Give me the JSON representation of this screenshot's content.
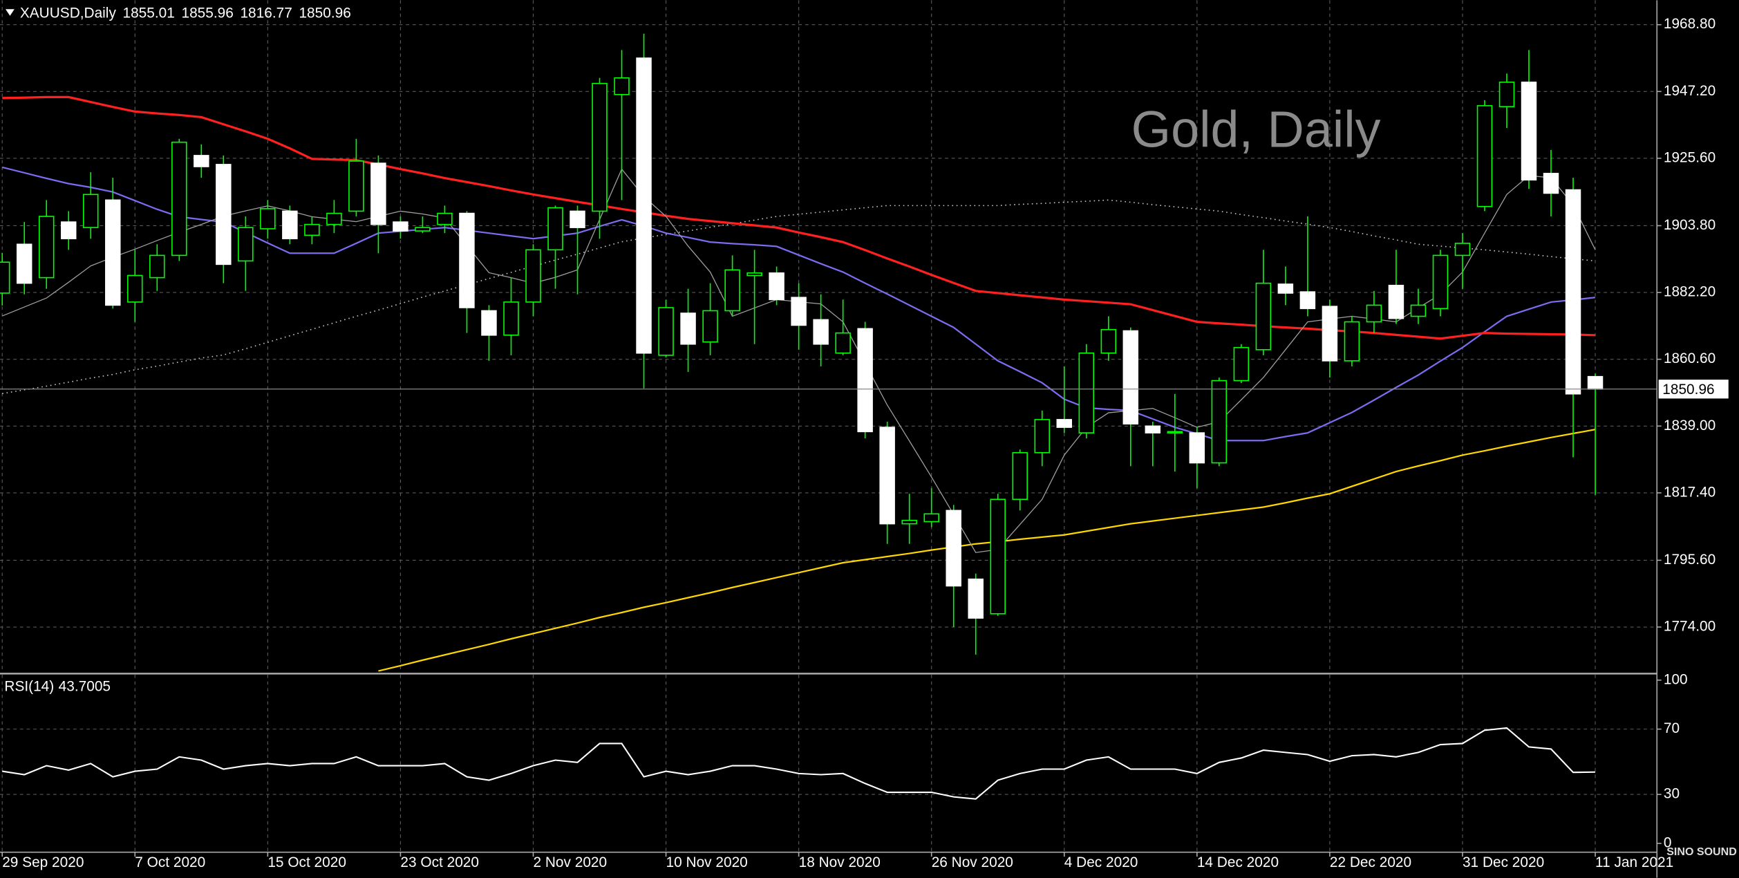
{
  "chart_data": [
    {
      "type": "candlestick",
      "symbol": "XAUUSD,Daily",
      "watermark": "Gold, Daily",
      "categories": [
        "29 Sep 2020",
        null,
        null,
        null,
        null,
        null,
        "7 Oct 2020",
        null,
        null,
        null,
        null,
        null,
        "15 Oct 2020",
        null,
        null,
        null,
        null,
        null,
        "23 Oct 2020",
        null,
        null,
        null,
        null,
        null,
        "2 Nov 2020",
        null,
        null,
        null,
        null,
        null,
        "10 Nov 2020",
        null,
        null,
        null,
        null,
        null,
        "18 Nov 2020",
        null,
        null,
        null,
        null,
        null,
        "26 Nov 2020",
        null,
        null,
        null,
        null,
        null,
        "4 Dec 2020",
        null,
        null,
        null,
        null,
        null,
        "14 Dec 2020",
        null,
        null,
        null,
        null,
        null,
        "22 Dec 2020",
        null,
        null,
        null,
        null,
        null,
        "31 Dec 2020",
        null,
        null,
        null,
        null,
        null,
        "11 Jan 2021"
      ],
      "open": [
        1882,
        1897.8,
        1887.0,
        1905.0,
        1903.2,
        1912.1,
        1879.1,
        1887.0,
        1894.2,
        1926.5,
        1923.6,
        1892.4,
        1902.8,
        1908.5,
        1900.7,
        1904.2,
        1908.5,
        1924.0,
        1905.0,
        1902.1,
        1904.2,
        1907.8,
        1876.3,
        1868.4,
        1879.1,
        1896.0,
        1908.5,
        1908.5,
        1946.2,
        1958.0,
        1861.9,
        1875.5,
        1866.2,
        1876.3,
        1887.7,
        1888.5,
        1880.6,
        1873.4,
        1862.6,
        1870.5,
        1838.6,
        1807.4,
        1808.1,
        1811.7,
        1789.5,
        1778.3,
        1815.3,
        1830.4,
        1841.1,
        1836.8,
        1862.6,
        1869.8,
        1839.0,
        1836.8,
        1836.8,
        1827.1,
        1853.7,
        1863.7,
        1884.9,
        1882.4,
        1877.7,
        1860.1,
        1872.7,
        1884.5,
        1874.5,
        1877.0,
        1894.2,
        1910.0,
        1942.3,
        1950.2,
        1920.7,
        1915.4,
        1855.01
      ],
      "high": [
        1895,
        1905.0,
        1912.1,
        1908.5,
        1921.1,
        1919.3,
        1896.0,
        1897.8,
        1931.9,
        1930.1,
        1926.5,
        1906.8,
        1912.1,
        1910.3,
        1906.8,
        1912.1,
        1931.9,
        1926.5,
        1906.8,
        1906.8,
        1910.3,
        1908.5,
        1878.1,
        1887.0,
        1897.8,
        1910.3,
        1910.3,
        1951.6,
        1960.6,
        1965.9,
        1879.9,
        1883.4,
        1885.2,
        1894.2,
        1896.0,
        1890.6,
        1885.2,
        1881.6,
        1879.9,
        1872.7,
        1840.4,
        1817.1,
        1818.9,
        1813.5,
        1791.3,
        1817.1,
        1831.4,
        1844.0,
        1858.3,
        1865.5,
        1874.5,
        1870.9,
        1840.4,
        1849.4,
        1838.6,
        1854.7,
        1865.5,
        1896.0,
        1890.6,
        1906.8,
        1879.9,
        1874.5,
        1882.7,
        1896.0,
        1883.4,
        1896.0,
        1901.4,
        1944.4,
        1953.0,
        1960.6,
        1928.3,
        1919.3,
        1855.96
      ],
      "low": [
        1878,
        1881.6,
        1883.4,
        1896.0,
        1899.6,
        1877.0,
        1872.7,
        1882.7,
        1892.4,
        1919.3,
        1885.2,
        1882.7,
        1899.6,
        1897.8,
        1897.8,
        1901.4,
        1906.8,
        1894.9,
        1899.6,
        1901.4,
        1901.4,
        1869.1,
        1860.1,
        1861.9,
        1874.5,
        1883.4,
        1881.6,
        1899.6,
        1912.1,
        1851.2,
        1861.2,
        1856.5,
        1861.9,
        1874.5,
        1865.5,
        1878.1,
        1863.7,
        1858.3,
        1861.9,
        1835.0,
        1800.9,
        1800.9,
        1806.3,
        1774.0,
        1765.1,
        1777.6,
        1811.7,
        1826.0,
        1836.8,
        1835.0,
        1860.1,
        1826.0,
        1826.0,
        1824.3,
        1818.9,
        1826.0,
        1852.9,
        1861.9,
        1878.1,
        1874.5,
        1854.7,
        1858.3,
        1869.1,
        1872.0,
        1872.0,
        1874.5,
        1883.4,
        1908.5,
        1935.4,
        1915.7,
        1906.8,
        1828.9,
        1816.77
      ],
      "close": [
        1892,
        1885.2,
        1906.8,
        1899.6,
        1913.9,
        1878.1,
        1887.7,
        1894.2,
        1930.8,
        1922.9,
        1891.3,
        1903.2,
        1909.3,
        1899.6,
        1904.2,
        1907.8,
        1924.7,
        1904.2,
        1902.1,
        1903.2,
        1907.8,
        1877.3,
        1868.4,
        1879.1,
        1896.0,
        1909.6,
        1903.2,
        1949.8,
        1951.6,
        1862.6,
        1877.3,
        1865.5,
        1876.3,
        1889.5,
        1888.5,
        1879.9,
        1871.6,
        1865.5,
        1869.1,
        1837.2,
        1807.4,
        1808.5,
        1810.6,
        1787.3,
        1776.9,
        1815.3,
        1830.4,
        1841.1,
        1838.6,
        1862.6,
        1870.2,
        1839.7,
        1836.8,
        1837.2,
        1827.1,
        1853.7,
        1864.4,
        1885.2,
        1882.0,
        1877.0,
        1860.1,
        1872.7,
        1878.1,
        1873.8,
        1878.1,
        1894.2,
        1898.1,
        1942.6,
        1950.2,
        1918.6,
        1914.3,
        1849.4,
        1850.96
      ],
      "up_color": "#00ff00",
      "down_color": "#ffffff",
      "series": [
        {
          "color": "#c8c8c8",
          "style": "dotted",
          "values": [
            1849.5,
            1850.7,
            1851.9,
            1853.2,
            1854.5,
            1855.7,
            1857.2,
            1858.4,
            1859.7,
            1861.0,
            1862.0,
            1864.0,
            1866.1,
            1868.2,
            1870.3,
            1872.4,
            1874.5,
            1876.5,
            1878.6,
            1880.7,
            1882.7,
            1884.7,
            1886.7,
            1888.7,
            1890.7,
            1892.7,
            1894.6,
            1896.6,
            1898.6,
            1899.8,
            1901.0,
            1902.1,
            1903.3,
            1904.4,
            1905.6,
            1906.8,
            1907.5,
            1908.2,
            1908.9,
            1909.6,
            1910.3,
            1910.3,
            1910.3,
            1910.3,
            1910.3,
            1910.3,
            1910.7,
            1911.0,
            1911.4,
            1911.7,
            1912.1,
            1911.4,
            1910.6,
            1909.9,
            1909.2,
            1908.5,
            1907.4,
            1906.4,
            1905.3,
            1904.3,
            1903.2,
            1901.9,
            1900.5,
            1899.2,
            1897.8,
            1897.2,
            1896.6,
            1896.0,
            1895.3,
            1894.6,
            1893.8,
            1893.1,
            1892.4
          ]
        },
        {
          "color": "#ffd700",
          "style": "solid",
          "values": [
            null,
            null,
            null,
            null,
            null,
            null,
            null,
            null,
            null,
            null,
            null,
            null,
            null,
            null,
            null,
            null,
            null,
            1759.8,
            1761.5,
            1763.3,
            1765.0,
            1766.7,
            1768.4,
            1770.2,
            1771.9,
            1773.6,
            1775.3,
            1777.1,
            1778.7,
            1780.4,
            1781.9,
            1783.5,
            1785.1,
            1786.8,
            1788.4,
            1790.0,
            1791.6,
            1793.2,
            1794.8,
            1795.8,
            1796.8,
            1797.8,
            1798.9,
            1799.9,
            1800.9,
            1801.6,
            1802.4,
            1803.1,
            1803.8,
            1805.0,
            1806.2,
            1807.4,
            1808.3,
            1809.2,
            1810.1,
            1811.0,
            1811.9,
            1812.8,
            1814.2,
            1815.7,
            1817.1,
            1819.5,
            1821.9,
            1824.3,
            1826.1,
            1827.8,
            1829.6,
            1831.0,
            1832.5,
            1833.9,
            1835.3,
            1836.6,
            1837.9
          ]
        },
        {
          "color": "#7b6cf0",
          "style": "solid",
          "values": [
            1922.7,
            1920.9,
            1919.1,
            1917.4,
            1916.2,
            1914.7,
            1911.9,
            1909.1,
            1906.7,
            1905.8,
            1905.0,
            1901.6,
            1898.2,
            1894.9,
            1894.9,
            1894.9,
            1898.1,
            1901.4,
            1902.0,
            1902.6,
            1903.2,
            1902.3,
            1901.4,
            1900.5,
            1899.6,
            1900.5,
            1901.4,
            1903.6,
            1905.7,
            1903.7,
            1901.4,
            1900.0,
            1898.5,
            1898.0,
            1897.6,
            1897.1,
            1894.3,
            1891.5,
            1888.8,
            1885.2,
            1881.7,
            1878.1,
            1874.5,
            1870.9,
            1865.5,
            1860.1,
            1856.6,
            1853.0,
            1847.7,
            1844.9,
            1844.4,
            1844.0,
            1841.3,
            1838.6,
            1836.5,
            1834.3,
            1834.3,
            1834.3,
            1835.6,
            1836.8,
            1840.1,
            1843.4,
            1847.4,
            1851.5,
            1855.5,
            1860.0,
            1864.4,
            1869.5,
            1874.5,
            1876.8,
            1879.1,
            1879.8,
            1880.6
          ]
        },
        {
          "color": "#ff2020",
          "style": "thick",
          "values": [
            1945.1,
            1945.2,
            1945.4,
            1945.4,
            1943.8,
            1942.2,
            1940.7,
            1940.1,
            1939.6,
            1938.9,
            1936.6,
            1934.3,
            1931.9,
            1928.8,
            1925.4,
            1925.2,
            1925.0,
            1923.6,
            1922.1,
            1920.7,
            1919.2,
            1917.9,
            1916.6,
            1915.2,
            1913.9,
            1912.7,
            1911.5,
            1910.4,
            1909.2,
            1908.1,
            1907.0,
            1906.0,
            1905.3,
            1904.6,
            1903.9,
            1903.2,
            1901.6,
            1900.1,
            1898.5,
            1895.9,
            1893.2,
            1890.6,
            1887.9,
            1885.3,
            1882.7,
            1882.0,
            1881.3,
            1880.6,
            1879.9,
            1879.4,
            1878.9,
            1878.4,
            1876.5,
            1874.6,
            1872.7,
            1872.2,
            1871.8,
            1871.3,
            1870.9,
            1870.5,
            1870.0,
            1869.6,
            1869.1,
            1868.5,
            1867.9,
            1867.3,
            1868.2,
            1869.1,
            1868.9,
            1868.8,
            1868.7,
            1868.6,
            1868.4
          ]
        },
        {
          "color": "#a0a0a0",
          "style": "thin",
          "values": [
            1874.6,
            1877.5,
            1880.4,
            1885.5,
            1890.8,
            1893.6,
            1896.2,
            1899.0,
            1901.7,
            1904.2,
            1906.9,
            1908.6,
            1910.2,
            1908.6,
            1906.7,
            1905.9,
            1905.1,
            1906.8,
            1908.5,
            1907.6,
            1906.3,
            1897.4,
            1888.6,
            1887.0,
            1885.2,
            1887.1,
            1889.5,
            1905.8,
            1922.1,
            1913.2,
            1906.8,
            1897.2,
            1888.8,
            1874.5,
            1877.2,
            1879.9,
            1879.2,
            1878.5,
            1872.7,
            1859.3,
            1845.8,
            1834.2,
            1822.5,
            1810.4,
            1798.1,
            1799.1,
            1807.2,
            1815.3,
            1829.6,
            1838.6,
            1843.3,
            1844.0,
            1844.7,
            1841.7,
            1838.6,
            1840.4,
            1847.5,
            1854.7,
            1863.7,
            1872.7,
            1873.6,
            1874.5,
            1873.6,
            1872.7,
            1877.2,
            1881.6,
            1888.8,
            1901.4,
            1913.9,
            1920.0,
            1919.3,
            1910.5,
            1896.0
          ]
        }
      ],
      "ylim": [
        1759.3,
        1976.7
      ],
      "yticks": [
        {
          "value": 1968.8,
          "label": "1968.80"
        },
        {
          "value": 1947.2,
          "label": "1947.20"
        },
        {
          "value": 1925.6,
          "label": "1925.60"
        },
        {
          "value": 1903.8,
          "label": "1903.80"
        },
        {
          "value": 1882.2,
          "label": "1882.20"
        },
        {
          "value": 1860.6,
          "label": "1860.60"
        },
        {
          "value": 1839.0,
          "label": "1839.00"
        },
        {
          "value": 1817.4,
          "label": "1817.40"
        },
        {
          "value": 1795.6,
          "label": "1795.60"
        },
        {
          "value": 1774.0,
          "label": "1774.00"
        }
      ],
      "grid": true
    },
    {
      "type": "line",
      "name": "RSI(14)",
      "color": "#ffffff",
      "values": [
        44.2,
        42.1,
        47.6,
        44.9,
        48.9,
        40.8,
        44.2,
        45.5,
        53.0,
        51.0,
        45.5,
        47.6,
        48.9,
        47.6,
        48.9,
        48.9,
        53.0,
        47.6,
        47.6,
        47.6,
        48.9,
        40.8,
        38.7,
        42.8,
        47.6,
        51.0,
        49.6,
        61.2,
        61.2,
        40.8,
        44.2,
        42.1,
        44.2,
        47.6,
        47.6,
        45.5,
        42.8,
        42.1,
        42.8,
        36.7,
        31.3,
        31.3,
        31.3,
        28.5,
        27.2,
        38.7,
        42.8,
        45.5,
        45.5,
        51.0,
        53.0,
        45.5,
        45.5,
        45.5,
        42.8,
        49.6,
        52.3,
        57.1,
        55.7,
        54.4,
        50.3,
        53.7,
        54.4,
        53.0,
        55.7,
        60.5,
        61.2,
        69.3,
        70.7,
        59.1,
        57.8,
        43.5,
        43.7005
      ],
      "ylim": [
        -5.4,
        103.3
      ],
      "yticks": [
        100,
        70,
        30,
        0
      ],
      "levels": [
        70,
        30
      ]
    }
  ],
  "logo": "SINO SOUND"
}
